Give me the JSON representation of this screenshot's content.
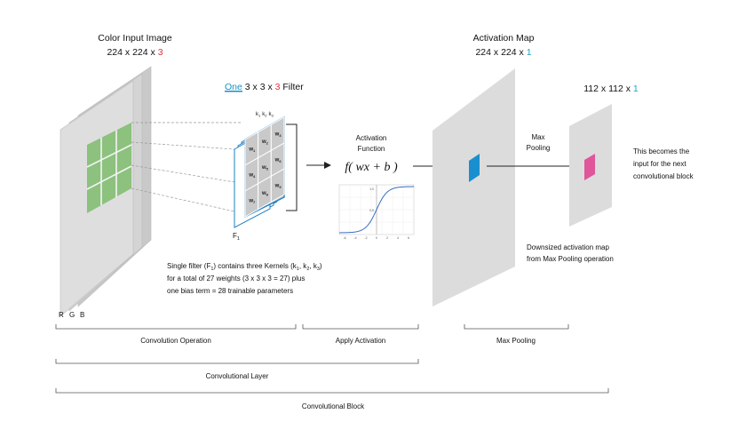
{
  "input": {
    "title": "Color Input Image",
    "dims_main": "224 x 224 x ",
    "dims_accent": "3",
    "channels": [
      "R",
      "G",
      "B"
    ]
  },
  "filter": {
    "title_link": "One",
    "title_main": " 3 x 3 x ",
    "title_accent": "3",
    "title_tail": " Filter",
    "kernels_label": [
      "k",
      "1",
      "k",
      "2",
      "k",
      "3"
    ],
    "weight_symbol": "w",
    "weight_subscripts": [
      "1",
      "2",
      "3",
      "4",
      "5",
      "6",
      "7",
      "8",
      "9"
    ],
    "name": "F",
    "name_sub": "1"
  },
  "activation": {
    "title_line1": "Activation",
    "title_line2": "Function",
    "formula": "f( wx + b )",
    "sigmoid_xticks": [
      "-6",
      "-4",
      "-2",
      "0",
      "2",
      "4",
      "6"
    ],
    "sigmoid_yticks": [
      "1.0",
      "0.5"
    ]
  },
  "activation_map": {
    "title": "Activation Map",
    "dims_main": "224 x 224 x ",
    "dims_accent": "1"
  },
  "pooling": {
    "label_line1": "Max",
    "label_line2": "Pooling",
    "out_dims_main": "112 x 112 x ",
    "out_dims_accent": "1",
    "note_lines": [
      "This becomes the",
      "input for the next",
      "convolutional block"
    ],
    "downsized_lines": [
      "Downsized activation map",
      "from Max Pooling operation"
    ]
  },
  "description": {
    "line1": "Single filter (F",
    "line1_sub": "1",
    "line1_mid": ") contains three Kernels (k",
    "line1_k1": "1",
    "line1_sep1": ", k",
    "line1_k2": "2",
    "line1_sep2": ", k",
    "line1_k3": "3",
    "line1_end": ")",
    "line2": "for a total of 27 weights  (3 x 3 x 3 = 27)  plus",
    "line3": "one bias term = 28 trainable parameters"
  },
  "brackets": {
    "convolution_operation": "Convolution Operation",
    "apply_activation": "Apply Activation",
    "max_pooling": "Max Pooling",
    "convolutional_layer": "Convolutional Layer",
    "convolutional_block": "Convolutional Block"
  },
  "colors": {
    "slab": "#dcdcdc",
    "slab_side": "#c4c4c4",
    "green_patch": "#8cc17e",
    "filter_blue": "#1e7fc7",
    "filter_cell": "#c9c9c9",
    "activation_blue": "#1a8fd0",
    "pooled_pink": "#e0569a",
    "accent_red": "#e0313a",
    "accent_cyan": "#1fa3c7"
  }
}
